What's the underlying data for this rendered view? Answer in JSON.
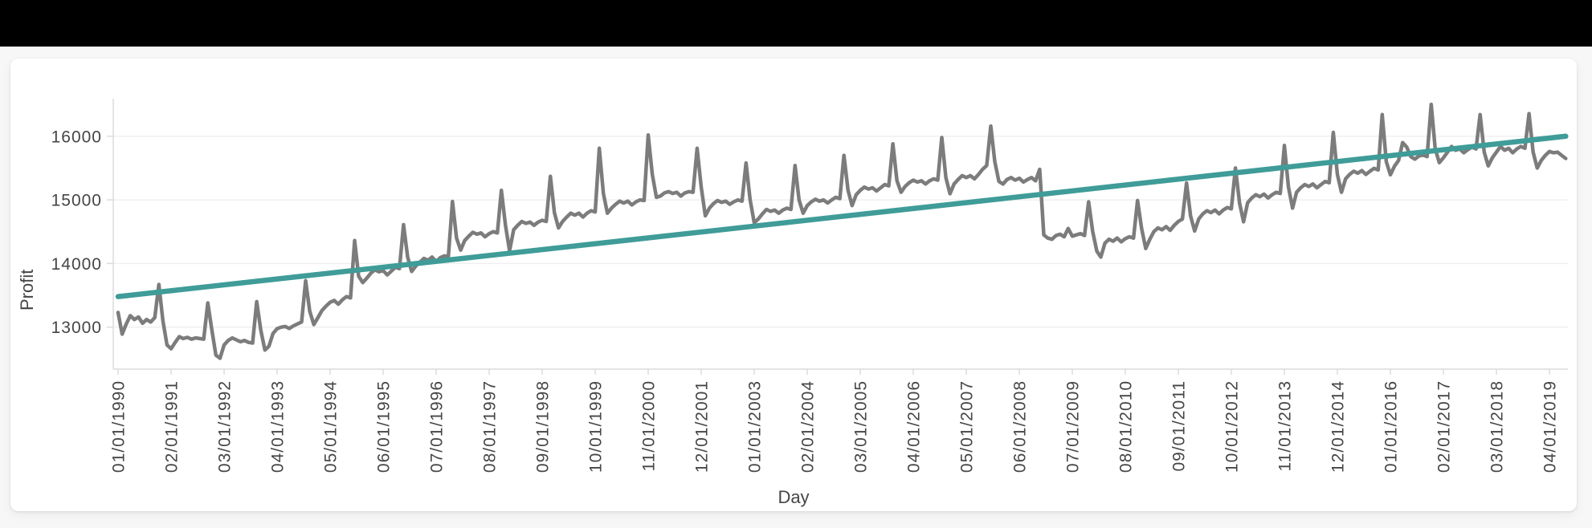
{
  "page": {
    "top_bar_color": "#000000",
    "background_color": "#f7f7f7",
    "card_background": "#ffffff"
  },
  "chart_data": {
    "type": "line",
    "title": "",
    "xlabel": "Day",
    "ylabel": "Profit",
    "grid": "horizontal",
    "legend_position": "none",
    "y_ticks": [
      13000,
      14000,
      15000,
      16000
    ],
    "ylim": [
      12340,
      16590
    ],
    "x_tick_every_n_points": 13,
    "x_tick_labels": [
      "01/01/1990",
      "02/01/1991",
      "03/01/1992",
      "04/01/1993",
      "05/01/1994",
      "06/01/1995",
      "07/01/1996",
      "08/01/1997",
      "09/01/1998",
      "10/01/1999",
      "11/01/2000",
      "12/01/2001",
      "01/01/2003",
      "02/01/2004",
      "03/01/2005",
      "04/01/2006",
      "05/01/2007",
      "06/01/2008",
      "07/01/2009",
      "08/01/2010",
      "09/01/2011",
      "10/01/2012",
      "11/01/2013",
      "12/01/2014",
      "01/01/2016",
      "02/01/2017",
      "03/01/2018",
      "04/01/2019"
    ],
    "frequency": "monthly",
    "series": [
      {
        "name": "profit",
        "color": "#7C7C7C",
        "values": [
          13230,
          12890,
          13050,
          13180,
          13120,
          13160,
          13060,
          13120,
          13080,
          13150,
          13670,
          13100,
          12720,
          12660,
          12760,
          12850,
          12820,
          12840,
          12810,
          12830,
          12820,
          12810,
          13380,
          12950,
          12560,
          12510,
          12720,
          12790,
          12830,
          12800,
          12770,
          12790,
          12760,
          12750,
          13400,
          12950,
          12640,
          12700,
          12900,
          12975,
          13000,
          13010,
          12980,
          13020,
          13050,
          13080,
          13730,
          13250,
          13040,
          13150,
          13260,
          13330,
          13390,
          13420,
          13360,
          13430,
          13480,
          13460,
          14360,
          13800,
          13700,
          13770,
          13850,
          13900,
          13870,
          13890,
          13820,
          13880,
          13940,
          13920,
          14610,
          14100,
          13875,
          13960,
          14020,
          14080,
          14050,
          14100,
          14030,
          14090,
          14120,
          14110,
          14975,
          14400,
          14210,
          14360,
          14430,
          14490,
          14460,
          14480,
          14420,
          14470,
          14500,
          14480,
          15150,
          14600,
          14200,
          14530,
          14600,
          14660,
          14630,
          14650,
          14600,
          14650,
          14680,
          14660,
          15370,
          14800,
          14560,
          14660,
          14730,
          14790,
          14760,
          14790,
          14730,
          14790,
          14830,
          14810,
          15810,
          15100,
          14790,
          14870,
          14930,
          14980,
          14950,
          14980,
          14920,
          14970,
          15000,
          14990,
          16020,
          15400,
          15040,
          15060,
          15110,
          15130,
          15100,
          15120,
          15060,
          15110,
          15130,
          15120,
          15810,
          15200,
          14750,
          14870,
          14940,
          14990,
          14960,
          14980,
          14930,
          14970,
          15000,
          14980,
          15580,
          15000,
          14640,
          14700,
          14780,
          14850,
          14820,
          14840,
          14790,
          14840,
          14870,
          14850,
          15540,
          15000,
          14790,
          14910,
          14970,
          15010,
          14980,
          15000,
          14950,
          15000,
          15040,
          15020,
          15700,
          15150,
          14910,
          15080,
          15150,
          15200,
          15170,
          15190,
          15140,
          15190,
          15240,
          15220,
          15880,
          15300,
          15120,
          15210,
          15270,
          15310,
          15280,
          15300,
          15250,
          15300,
          15330,
          15310,
          15980,
          15350,
          15095,
          15250,
          15320,
          15380,
          15350,
          15380,
          15330,
          15400,
          15480,
          15540,
          16160,
          15600,
          15290,
          15250,
          15320,
          15350,
          15310,
          15340,
          15280,
          15320,
          15350,
          15300,
          15480,
          14450,
          14400,
          14380,
          14440,
          14460,
          14420,
          14550,
          14430,
          14450,
          14470,
          14440,
          14970,
          14500,
          14195,
          14100,
          14320,
          14380,
          14350,
          14400,
          14340,
          14390,
          14420,
          14400,
          14990,
          14550,
          14235,
          14380,
          14500,
          14560,
          14530,
          14580,
          14520,
          14600,
          14660,
          14700,
          15265,
          14750,
          14510,
          14700,
          14780,
          14830,
          14800,
          14840,
          14780,
          14840,
          14880,
          14860,
          15500,
          14950,
          14655,
          14955,
          15030,
          15080,
          15050,
          15090,
          15030,
          15080,
          15120,
          15100,
          15855,
          15200,
          14870,
          15120,
          15190,
          15240,
          15210,
          15250,
          15190,
          15240,
          15290,
          15270,
          16060,
          15400,
          15120,
          15330,
          15400,
          15450,
          15420,
          15460,
          15400,
          15450,
          15495,
          15470,
          16340,
          15600,
          15395,
          15530,
          15620,
          15900,
          15830,
          15680,
          15640,
          15690,
          15705,
          15680,
          16500,
          15800,
          15585,
          15660,
          15750,
          15840,
          15780,
          15800,
          15740,
          15790,
          15830,
          15800,
          16340,
          15750,
          15535,
          15660,
          15750,
          15840,
          15780,
          15810,
          15740,
          15800,
          15840,
          15810,
          16355,
          15750,
          15500,
          15620,
          15700,
          15760,
          15740,
          15750,
          15700,
          15650
        ]
      },
      {
        "name": "trend line",
        "color": "#3F9C98",
        "start_value": 13480,
        "end_value": 16000
      }
    ],
    "style": {
      "gridline_color": "#efefef",
      "axis_color": "#dcdcdc",
      "tick_label_color": "#454545"
    }
  }
}
